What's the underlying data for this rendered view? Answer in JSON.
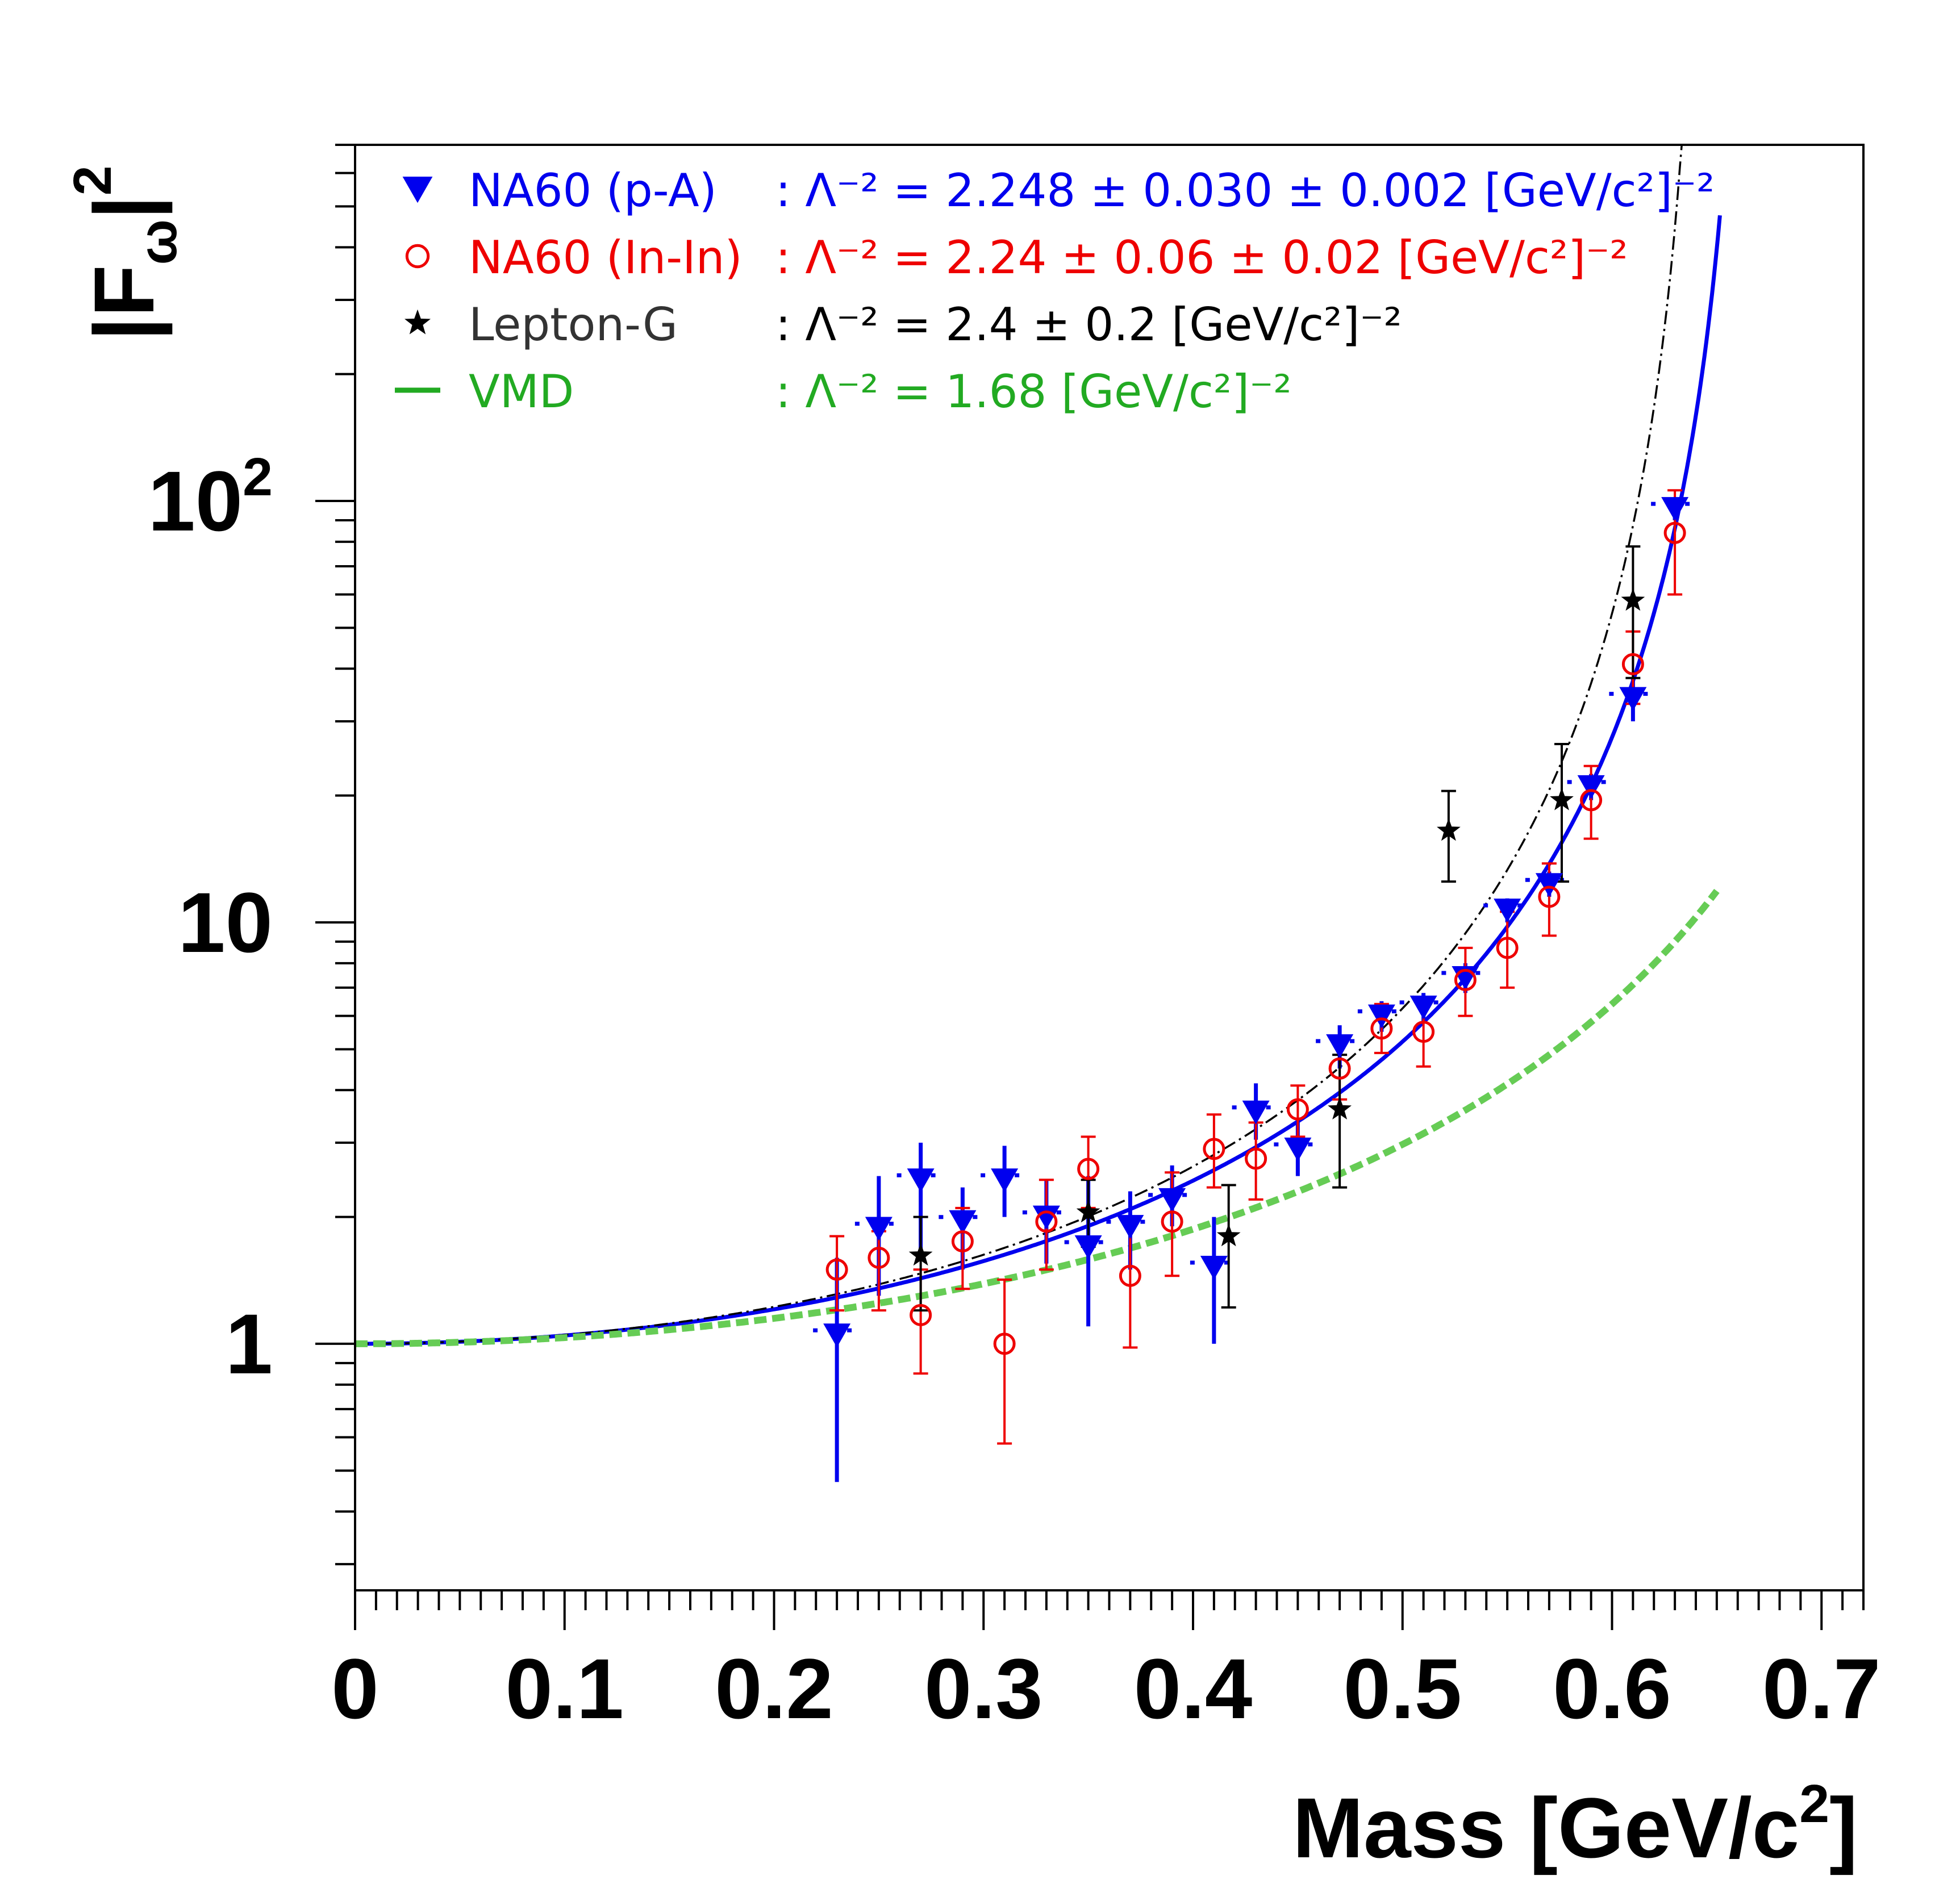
{
  "chart_data": {
    "type": "scatter",
    "title": "",
    "xlabel": "Mass  [GeV/c",
    "xlabel_sup": "2",
    "xlabel_close": "]",
    "ylabel": "|F",
    "ylabel_sub": "ω",
    "ylabel_close": "|",
    "ylabel_sup": "2",
    "xlim": [
      0,
      0.72
    ],
    "ylim": [
      0.26,
      700
    ],
    "yscale": "log",
    "x_ticks": [
      "0",
      "0.1",
      "0.2",
      "0.3",
      "0.4",
      "0.5",
      "0.6",
      "0.7"
    ],
    "x_tick_values": [
      0,
      0.1,
      0.2,
      0.3,
      0.4,
      0.5,
      0.6,
      0.7
    ],
    "y_ticks": [
      {
        "value": 1,
        "label": "1"
      },
      {
        "value": 10,
        "label": "10"
      },
      {
        "value": 100,
        "label": "10",
        "sup": "2"
      }
    ],
    "legend_position": "top-left",
    "legend": [
      {
        "name": "NA60 (p-A)",
        "value": ": Λ⁻² = 2.248 ± 0.030 ± 0.002 [GeV/c²]⁻²",
        "color": "#0000ee",
        "marker": "triangle-down"
      },
      {
        "name": "NA60 (In-In)",
        "value": ": Λ⁻² = 2.24 ± 0.06 ± 0.02 [GeV/c²]⁻²",
        "color": "#ee0000",
        "marker": "open-circle"
      },
      {
        "name": "Lepton-G",
        "value": ": Λ⁻² = 2.4 ± 0.2 [GeV/c²]⁻²",
        "color": "#000000",
        "label_color": "#333333",
        "marker": "star"
      },
      {
        "name": "VMD",
        "value": ": Λ⁻² = 1.68 [GeV/c²]⁻²",
        "color": "#22aa22",
        "marker": "line"
      }
    ],
    "series": [
      {
        "name": "NA60 (p-A)",
        "color": "#0000ee",
        "marker": "triangle-down",
        "points": [
          {
            "x": 0.23,
            "y": 1.05,
            "lo": 0.47,
            "hi": 1.6
          },
          {
            "x": 0.25,
            "y": 1.88,
            "lo": 1.3,
            "hi": 2.5
          },
          {
            "x": 0.27,
            "y": 2.45,
            "lo": 1.6,
            "hi": 3.0
          },
          {
            "x": 0.29,
            "y": 1.95,
            "lo": 1.5,
            "hi": 2.35
          },
          {
            "x": 0.31,
            "y": 2.45,
            "lo": 2.0,
            "hi": 2.95
          },
          {
            "x": 0.33,
            "y": 2.0,
            "lo": 1.55,
            "hi": 2.45
          },
          {
            "x": 0.35,
            "y": 1.7,
            "lo": 1.1,
            "hi": 2.5
          },
          {
            "x": 0.37,
            "y": 1.9,
            "lo": 1.5,
            "hi": 2.3
          },
          {
            "x": 0.39,
            "y": 2.2,
            "lo": 1.9,
            "hi": 2.65
          },
          {
            "x": 0.41,
            "y": 1.52,
            "lo": 1.0,
            "hi": 2.0
          },
          {
            "x": 0.43,
            "y": 3.55,
            "lo": 3.05,
            "hi": 4.15
          },
          {
            "x": 0.45,
            "y": 2.9,
            "lo": 2.5,
            "hi": 3.4
          },
          {
            "x": 0.47,
            "y": 5.1,
            "lo": 4.5,
            "hi": 5.7
          },
          {
            "x": 0.49,
            "y": 6.0,
            "lo": 5.5,
            "hi": 6.5
          },
          {
            "x": 0.51,
            "y": 6.3,
            "lo": 5.8,
            "hi": 6.8
          },
          {
            "x": 0.53,
            "y": 7.4,
            "lo": 6.8,
            "hi": 8.0
          },
          {
            "x": 0.55,
            "y": 10.7,
            "lo": 10.0,
            "hi": 11.4
          },
          {
            "x": 0.57,
            "y": 12.3,
            "lo": 11.5,
            "hi": 13.2
          },
          {
            "x": 0.59,
            "y": 21.0,
            "lo": 19.5,
            "hi": 22.5
          },
          {
            "x": 0.61,
            "y": 34.0,
            "lo": 30.0,
            "hi": 38.0
          },
          {
            "x": 0.63,
            "y": 96.0,
            "lo": 90.0,
            "hi": 102.0
          }
        ]
      },
      {
        "name": "NA60 (In-In)",
        "color": "#ee0000",
        "marker": "open-circle",
        "points": [
          {
            "x": 0.23,
            "y": 1.5,
            "lo": 1.2,
            "hi": 1.8
          },
          {
            "x": 0.25,
            "y": 1.6,
            "lo": 1.2,
            "hi": 1.85
          },
          {
            "x": 0.27,
            "y": 1.17,
            "lo": 0.85,
            "hi": 1.5
          },
          {
            "x": 0.29,
            "y": 1.75,
            "lo": 1.35,
            "hi": 2.1
          },
          {
            "x": 0.31,
            "y": 1.0,
            "lo": 0.58,
            "hi": 1.42
          },
          {
            "x": 0.33,
            "y": 1.95,
            "lo": 1.5,
            "hi": 2.45
          },
          {
            "x": 0.35,
            "y": 2.6,
            "lo": 2.1,
            "hi": 3.1
          },
          {
            "x": 0.37,
            "y": 1.45,
            "lo": 0.98,
            "hi": 1.95
          },
          {
            "x": 0.39,
            "y": 1.95,
            "lo": 1.45,
            "hi": 2.55
          },
          {
            "x": 0.41,
            "y": 2.9,
            "lo": 2.35,
            "hi": 3.5
          },
          {
            "x": 0.43,
            "y": 2.75,
            "lo": 2.2,
            "hi": 3.35
          },
          {
            "x": 0.45,
            "y": 3.6,
            "lo": 3.1,
            "hi": 4.1
          },
          {
            "x": 0.47,
            "y": 4.5,
            "lo": 3.8,
            "hi": 5.3
          },
          {
            "x": 0.49,
            "y": 5.6,
            "lo": 4.9,
            "hi": 6.4
          },
          {
            "x": 0.51,
            "y": 5.5,
            "lo": 4.55,
            "hi": 6.5
          },
          {
            "x": 0.53,
            "y": 7.3,
            "lo": 6.0,
            "hi": 8.7
          },
          {
            "x": 0.55,
            "y": 8.7,
            "lo": 7.0,
            "hi": 10.6
          },
          {
            "x": 0.57,
            "y": 11.5,
            "lo": 9.3,
            "hi": 13.8
          },
          {
            "x": 0.59,
            "y": 19.5,
            "lo": 15.8,
            "hi": 23.5
          },
          {
            "x": 0.61,
            "y": 41.0,
            "lo": 33.0,
            "hi": 49.0
          },
          {
            "x": 0.63,
            "y": 84.0,
            "lo": 60.0,
            "hi": 106.0
          }
        ]
      },
      {
        "name": "Lepton-G",
        "color": "#000000",
        "marker": "star",
        "points": [
          {
            "x": 0.27,
            "y": 1.62,
            "lo": 1.2,
            "hi": 2.0
          },
          {
            "x": 0.35,
            "y": 2.05,
            "lo": 1.7,
            "hi": 2.45
          },
          {
            "x": 0.417,
            "y": 1.8,
            "lo": 1.22,
            "hi": 2.38
          },
          {
            "x": 0.47,
            "y": 3.6,
            "lo": 2.35,
            "hi": 4.85
          },
          {
            "x": 0.522,
            "y": 16.5,
            "lo": 12.5,
            "hi": 20.5
          },
          {
            "x": 0.576,
            "y": 19.5,
            "lo": 12.5,
            "hi": 26.5
          },
          {
            "x": 0.61,
            "y": 58.0,
            "lo": 38.0,
            "hi": 78.0
          }
        ]
      }
    ],
    "curves": [
      {
        "name": "NA60 fit",
        "color": "#0000ee",
        "style": "solid",
        "lambda2": 2.248,
        "x_max": 0.6515
      },
      {
        "name": "Lepton-G fit",
        "color": "#000000",
        "style": "dash-dot",
        "lambda2": 2.4,
        "x_max": 0.636
      },
      {
        "name": "VMD",
        "color": "#66cc55",
        "style": "dashed",
        "lambda2": 1.68,
        "x_max": 0.65
      }
    ]
  }
}
